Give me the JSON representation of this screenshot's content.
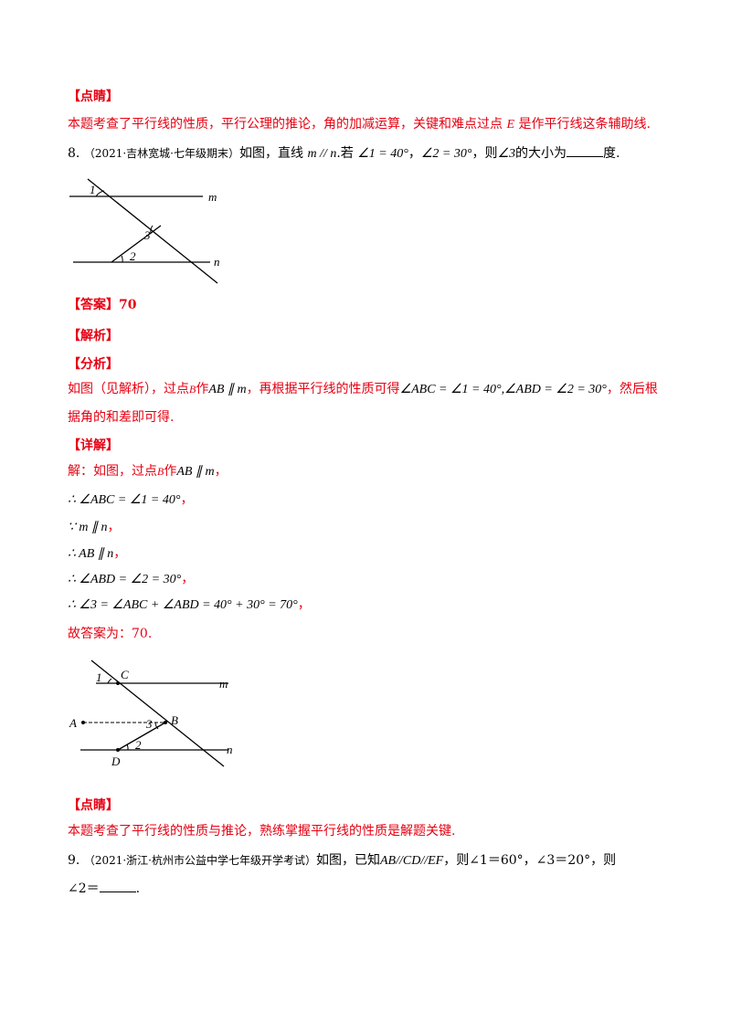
{
  "colors": {
    "accent": "#e60012",
    "text": "#000000"
  },
  "s1": {
    "heading": "【点睛】",
    "text": "本题考查了平行线的性质，平行公理的推论，角的加减运算，关键和难点过点",
    "point": "E",
    "text_end": "是作平行线这条辅助线."
  },
  "q8": {
    "num": "8.",
    "source": "（2021·吉林宽城·七年级期末）",
    "lead": "如图，直线",
    "math1": "m // n",
    "mid": ".若",
    "angle1": "∠1 = 40°",
    "comma": "，",
    "angle2": "∠2 = 30°",
    "then": "，则",
    "angle3": "∠3",
    "end": "的大小为",
    "unit": "度.",
    "figure": {
      "l1": "1",
      "l2": "2",
      "l3": "3",
      "m": "m",
      "n": "n"
    }
  },
  "answer": {
    "heading": "【答案】",
    "value": "70"
  },
  "analysis": {
    "heading": "【解析】"
  },
  "fenxi": {
    "heading": "【分析】",
    "line1_a": "如图（见解析），过点",
    "pt": "B",
    "line1_b": "作",
    "ab_m": "AB ∥ m",
    "line1_c": "，再根据平行线的性质可得",
    "eq": "∠ABC = ∠1 = 40°,∠ABD = ∠2 = 30°",
    "line1_d": "，然后根",
    "line2": "据角的和差即可得."
  },
  "detail": {
    "heading": "【详解】",
    "step0_a": "解：如图，过点",
    "step0_pt": "B",
    "step0_b": "作",
    "step0_m": "AB ∥ m",
    "step0_c": "，",
    "step1": "∴ ∠ABC = ∠1 = 40°",
    "step2": "∵ m ∥ n",
    "step3": "∴ AB ∥ n",
    "step4": "∴ ∠ABD = ∠2 = 30°",
    "step5": "∴ ∠3 = ∠ABC + ∠ABD = 40° + 30° = 70°",
    "sep": "，",
    "final": "故答案为：70.",
    "figure": {
      "l1": "1",
      "l2": "2",
      "l3": "3",
      "m": "m",
      "n": "n",
      "A": "A",
      "B": "B",
      "C": "C",
      "D": "D"
    }
  },
  "s2": {
    "heading": "【点睛】",
    "text": "本题考查了平行线的性质与推论，熟练掌握平行线的性质是解题关键."
  },
  "q9": {
    "num": "9.",
    "source": "（2021·浙江·杭州市公益中学七年级开学考试）",
    "lead": "如图，已知",
    "math": "AB//CD//EF",
    "mid": "，则∠1＝60°，∠3＝20°，则",
    "line2_a": "∠2＝",
    "line2_b": "."
  }
}
